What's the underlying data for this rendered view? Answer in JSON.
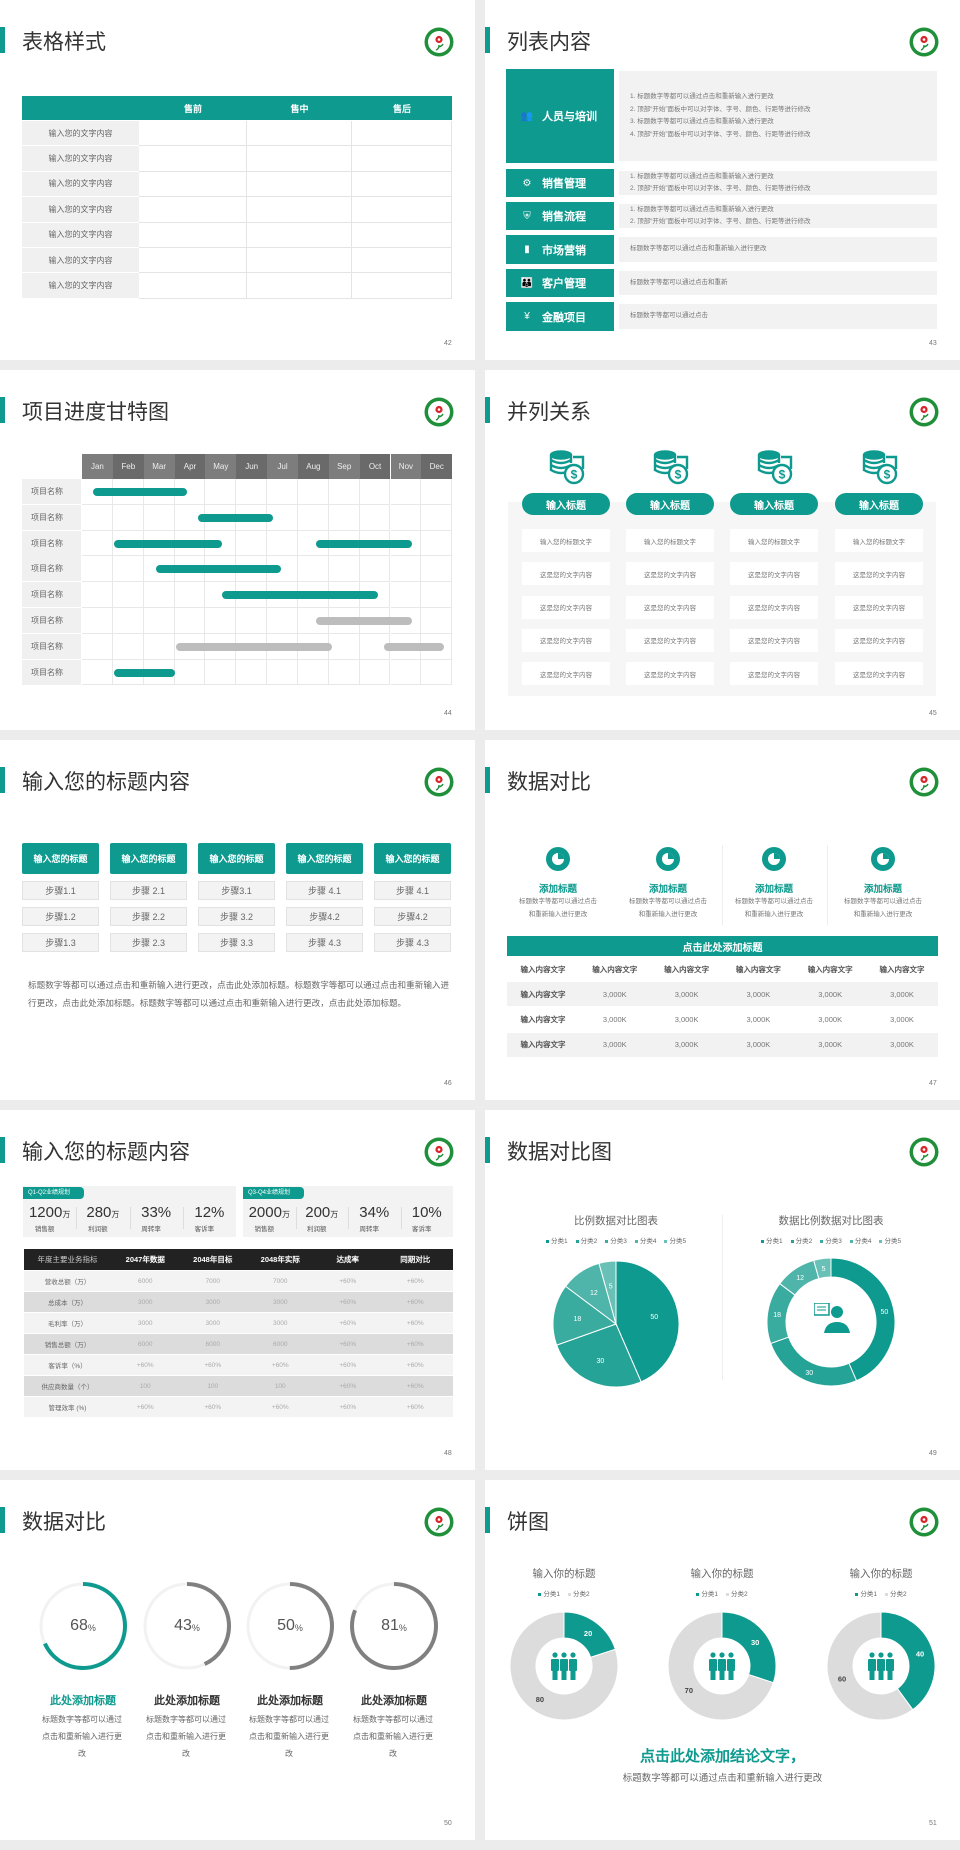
{
  "colors": {
    "accent": "#0e9a8e",
    "dark_header": "#222222",
    "gray_bar": "#bdbdbd",
    "light_panel": "#f2f2f2"
  },
  "logo_icon": "green-circle-red-flower-logo",
  "slides": [
    {
      "title": "表格样式",
      "page": "42",
      "table": {
        "headers": [
          "",
          "售前",
          "售中",
          "售后"
        ],
        "rows": [
          "输入您的文字内容",
          "输入您的文字内容",
          "输入您的文字内容",
          "输入您的文字内容",
          "输入您的文字内容",
          "输入您的文字内容",
          "输入您的文字内容"
        ]
      }
    },
    {
      "title": "列表内容",
      "page": "43",
      "items": [
        {
          "label": "人员与培训",
          "icon": "people-training-icon",
          "lines": [
            "1.   标题数字等都可以通过点击和重新输入进行更改",
            "2.   顶部“开始”面板中可以对字体、字号、颜色、行距等进行修改",
            "3.   标题数字等都可以通过点击和重新输入进行更改",
            "4.   顶部“开始”面板中可以对字体、字号、颜色、行距等进行修改"
          ]
        },
        {
          "label": "销售管理",
          "icon": "user-gear-icon",
          "lines": [
            "1.   标题数字等都可以通过点击和重新输入进行更改",
            "2.   顶部“开始”面板中可以对字体、字号、颜色、行距等进行修改"
          ]
        },
        {
          "label": "销售流程",
          "icon": "shield-icon",
          "lines": [
            "1.   标题数字等都可以通过点击和重新输入进行更改",
            "2.   顶部“开始”面板中可以对字体、字号、颜色、行距等进行修改"
          ]
        },
        {
          "label": "市场营销",
          "icon": "bar-chart-icon",
          "lines": [
            "标题数字等都可以通过点击和重新输入进行更改"
          ]
        },
        {
          "label": "客户管理",
          "icon": "group-icon",
          "lines": [
            "标题数字等都可以通过点击和重新"
          ]
        },
        {
          "label": "金融项目",
          "icon": "hand-coin-icon",
          "lines": [
            "标题数字等都可以通过点击"
          ]
        }
      ]
    },
    {
      "title": "项目进度甘特图",
      "page": "44",
      "gantt": {
        "months": [
          "Jan",
          "Feb",
          "Mar",
          "Apr",
          "May",
          "Jun",
          "Jul",
          "Aug",
          "Sep",
          "Oct",
          "Nov",
          "Dec"
        ],
        "rows": [
          {
            "label": "项目名称",
            "bars": [
              {
                "start": 0.35,
                "end": 3.4,
                "status": "active"
              }
            ]
          },
          {
            "label": "项目名称",
            "bars": [
              {
                "start": 3.75,
                "end": 6.2,
                "status": "active"
              }
            ]
          },
          {
            "label": "项目名称",
            "bars": [
              {
                "start": 1.05,
                "end": 4.55,
                "status": "active"
              },
              {
                "start": 7.6,
                "end": 10.7,
                "status": "active"
              }
            ]
          },
          {
            "label": "项目名称",
            "bars": [
              {
                "start": 2.4,
                "end": 6.45,
                "status": "active"
              }
            ]
          },
          {
            "label": "项目名称",
            "bars": [
              {
                "start": 4.55,
                "end": 9.6,
                "status": "active"
              }
            ]
          },
          {
            "label": "项目名称",
            "bars": [
              {
                "start": 7.6,
                "end": 10.7,
                "status": "pending"
              }
            ]
          },
          {
            "label": "项目名称",
            "bars": [
              {
                "start": 3.05,
                "end": 8.1,
                "status": "pending"
              },
              {
                "start": 9.8,
                "end": 11.75,
                "status": "pending"
              }
            ]
          },
          {
            "label": "项目名称",
            "bars": [
              {
                "start": 1.05,
                "end": 3.0,
                "status": "active"
              }
            ]
          }
        ]
      }
    },
    {
      "title": "并列关系",
      "page": "45",
      "icon": "coins-dollar-icon",
      "columns": [
        {
          "title": "输入标题",
          "cells": [
            "输入您的标题文字",
            "这是您的文字内容",
            "这是您的文字内容",
            "这是您的文字内容",
            "这是您的文字内容"
          ]
        },
        {
          "title": "输入标题",
          "cells": [
            "输入您的标题文字",
            "这是您的文字内容",
            "这是您的文字内容",
            "这是您的文字内容",
            "这是您的文字内容"
          ]
        },
        {
          "title": "输入标题",
          "cells": [
            "输入您的标题文字",
            "这是您的文字内容",
            "这是您的文字内容",
            "这是您的文字内容",
            "这是您的文字内容"
          ]
        },
        {
          "title": "输入标题",
          "cells": [
            "输入您的标题文字",
            "这是您的文字内容",
            "这是您的文字内容",
            "这是您的文字内容",
            "这是您的文字内容"
          ]
        }
      ]
    },
    {
      "title": "输入您的标题内容",
      "page": "46",
      "columns": [
        {
          "title": "输入您的标题",
          "steps": [
            "步骤1.1",
            "步骤1.2",
            "步骤1.3"
          ]
        },
        {
          "title": "输入您的标题",
          "steps": [
            "步骤 2.1",
            "步骤 2.2",
            "步骤 2.3"
          ]
        },
        {
          "title": "输入您的标题",
          "steps": [
            "步骤3.1",
            "步骤 3.2",
            "步骤 3.3"
          ]
        },
        {
          "title": "输入您的标题",
          "steps": [
            "步骤 4.1",
            "步骤4.2",
            "步骤 4.3"
          ]
        },
        {
          "title": "输入您的标题",
          "steps": [
            "步骤 4.1",
            "步骤4.2",
            "步骤 4.3"
          ]
        }
      ],
      "paragraph": "标题数字等都可以通过点击和重新输入进行更改，点击此处添加标题。标题数字等都可以通过点击和重新输入进行更改，点击此处添加标题。标题数字等都可以通过点击和重新输入进行更改，点击此处添加标题。"
    },
    {
      "title": "数据对比",
      "page": "47",
      "icon": "pie-chart-icon",
      "features": [
        {
          "title": "添加标题",
          "desc": "标题数字等都可以通过点击和重新输入进行更改"
        },
        {
          "title": "添加标题",
          "desc": "标题数字等都可以通过点击和重新输入进行更改"
        },
        {
          "title": "添加标题",
          "desc": "标题数字等都可以通过点击和重新输入进行更改"
        },
        {
          "title": "添加标题",
          "desc": "标题数字等都可以通过点击和重新输入进行更改"
        }
      ],
      "table_title": "点击此处添加标题",
      "table_headers": [
        "输入内容文字",
        "输入内容文字",
        "输入内容文字",
        "输入内容文字",
        "输入内容文字",
        "输入内容文字"
      ],
      "table_rows": [
        [
          "输入内容文字",
          "3,000K",
          "3,000K",
          "3,000K",
          "3,000K",
          "3,000K"
        ],
        [
          "输入内容文字",
          "3,000K",
          "3,000K",
          "3,000K",
          "3,000K",
          "3,000K"
        ],
        [
          "输入内容文字",
          "3,000K",
          "3,000K",
          "3,000K",
          "3,000K",
          "3,000K"
        ]
      ]
    },
    {
      "title": "输入您的标题内容",
      "page": "48",
      "kpi_groups": [
        {
          "tag": "Q1-Q2业绩规划",
          "items": [
            {
              "value": "1200",
              "unit": "万",
              "label": "销售额"
            },
            {
              "value": "280",
              "unit": "万",
              "label": "利润额"
            },
            {
              "value": "33%",
              "unit": "",
              "label": "周转率"
            },
            {
              "value": "12%",
              "unit": "",
              "label": "客诉率"
            }
          ]
        },
        {
          "tag": "Q3-Q4业绩规划",
          "items": [
            {
              "value": "2000",
              "unit": "万",
              "label": "销售额"
            },
            {
              "value": "200",
              "unit": "万",
              "label": "利润额"
            },
            {
              "value": "34%",
              "unit": "",
              "label": "周转率"
            },
            {
              "value": "10%",
              "unit": "",
              "label": "客诉率"
            }
          ]
        }
      ],
      "table_headers": [
        "年度主要业务指标",
        "2047年数据",
        "2048年目标",
        "2048年实际",
        "达成率",
        "同期对比"
      ],
      "table_rows": [
        [
          "营收总额（万）",
          "6000",
          "7000",
          "7000",
          "+60%",
          "+60%"
        ],
        [
          "总成本（万）",
          "3000",
          "3000",
          "3000",
          "+60%",
          "+60%"
        ],
        [
          "毛利率（万）",
          "3000",
          "3000",
          "3000",
          "+60%",
          "+60%"
        ],
        [
          "销售总额（万）",
          "6000",
          "6000",
          "6000",
          "+60%",
          "+60%"
        ],
        [
          "客诉率（%）",
          "+60%",
          "+60%",
          "+60%",
          "+60%",
          "+60%"
        ],
        [
          "供应商数量（个）",
          "100",
          "100",
          "100",
          "+60%",
          "+60%"
        ],
        [
          "管理效率 (%)",
          "+60%",
          "+60%",
          "+60%",
          "+60%",
          "+60%"
        ]
      ]
    },
    {
      "title": "数据对比图",
      "page": "49",
      "center_icon": "person-chat-icon"
    },
    {
      "title": "数据对比",
      "page": "50",
      "rings": [
        {
          "value": 68,
          "unit": "%",
          "title": "此处添加标题",
          "desc": "标题数字等都可以通过点击和重新输入进行更改",
          "highlight": true
        },
        {
          "value": 43,
          "unit": "%",
          "title": "此处添加标题",
          "desc": "标题数字等都可以通过点击和重新输入进行更改",
          "highlight": false
        },
        {
          "value": 50,
          "unit": "%",
          "title": "此处添加标题",
          "desc": "标题数字等都可以通过点击和重新输入进行更改",
          "highlight": false
        },
        {
          "value": 81,
          "unit": "%",
          "title": "此处添加标题",
          "desc": "标题数字等都可以通过点击和重新输入进行更改",
          "highlight": false
        }
      ]
    },
    {
      "title": "饼图",
      "page": "51",
      "center_icon": "team-icon",
      "conclusion": "点击此处添加结论文字，",
      "conclusion_sub": "标题数字等都可以通过点击和重新输入进行更改"
    }
  ],
  "chart_data": [
    {
      "type": "pie",
      "title": "比例数据对比图表",
      "legend": [
        "分类1",
        "分类2",
        "分类3",
        "分类4",
        "分类5"
      ],
      "values": [
        50,
        30,
        18,
        12,
        5
      ],
      "legend_position": "top",
      "colors": [
        "#0e9a8e",
        "#26a397",
        "#3aab9f",
        "#4fb5aa",
        "#69c0b6"
      ]
    },
    {
      "type": "donut",
      "title": "数据比例数据对比图表",
      "legend": [
        "分类1",
        "分类2",
        "分类3",
        "分类4",
        "分类5"
      ],
      "values": [
        50,
        30,
        18,
        12,
        5
      ],
      "legend_position": "top",
      "colors": [
        "#0e9a8e",
        "#26a397",
        "#3aab9f",
        "#4fb5aa",
        "#69c0b6"
      ]
    },
    {
      "type": "donut",
      "title": "输入你的标题",
      "legend": [
        "分类1",
        "分类2"
      ],
      "values": [
        20,
        80
      ],
      "legend_position": "top",
      "colors": [
        "#0e9a8e",
        "#dcdcdc"
      ]
    },
    {
      "type": "donut",
      "title": "输入你的标题",
      "legend": [
        "分类1",
        "分类2"
      ],
      "values": [
        30,
        70
      ],
      "legend_position": "top",
      "colors": [
        "#0e9a8e",
        "#dcdcdc"
      ]
    },
    {
      "type": "donut",
      "title": "输入你的标题",
      "legend": [
        "分类1",
        "分类2"
      ],
      "values": [
        40,
        60
      ],
      "legend_position": "top",
      "colors": [
        "#0e9a8e",
        "#dcdcdc"
      ]
    }
  ]
}
